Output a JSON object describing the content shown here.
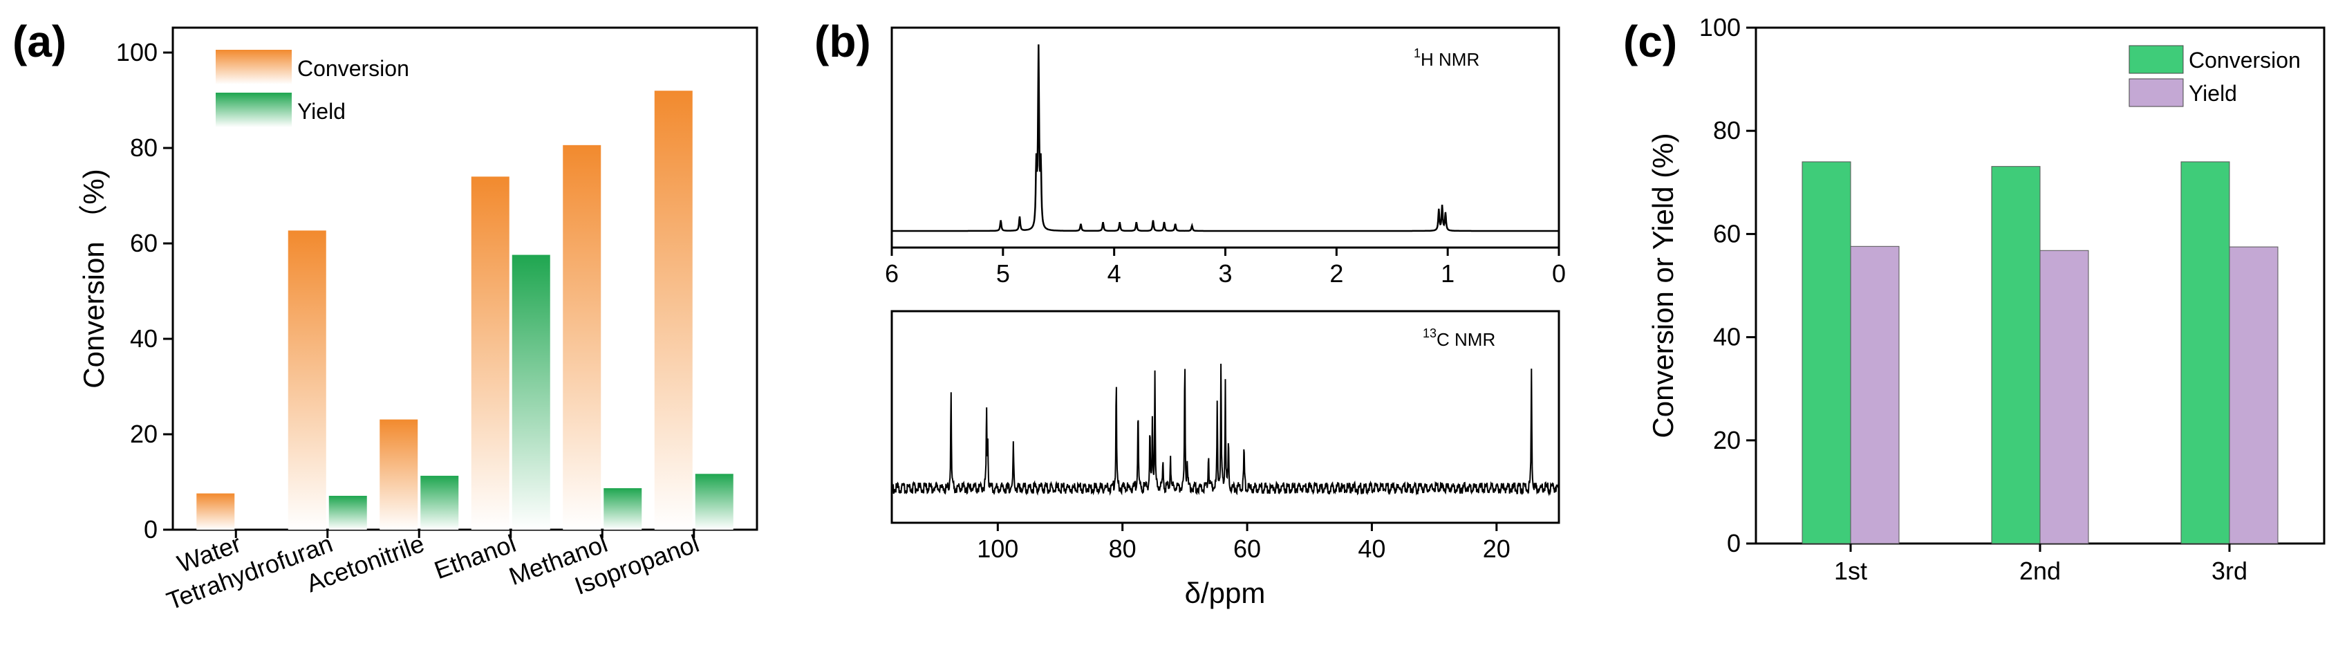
{
  "chart_data": [
    {
      "panel": "(a)",
      "type": "bar",
      "ylabel": "Conversion （%)",
      "ylim": [
        0,
        100
      ],
      "yticks": [
        "0",
        "20",
        "40",
        "60",
        "80",
        "100"
      ],
      "categories": [
        "Water",
        "Tetrahydrofuran",
        "Acetonitrile",
        "Ethanol",
        "Methanol",
        "Isopropanol"
      ],
      "series": [
        {
          "name": "Conversion",
          "values": [
            7.6,
            62.7,
            23.1,
            74.0,
            80.6,
            92.0
          ],
          "color": "#F28A2E"
        },
        {
          "name": "Yield",
          "values": [
            0,
            7.1,
            11.3,
            57.6,
            8.7,
            11.7
          ],
          "color": "#1FA650"
        }
      ],
      "legend": "top-left"
    },
    {
      "panel": "(b)",
      "type": "line",
      "subplots": [
        {
          "label": "1H NMR",
          "label_sup": "1",
          "label_main": "H NMR",
          "xlim": [
            6,
            0
          ],
          "xticks": [
            "6",
            "5",
            "4",
            "3",
            "2",
            "1",
            "0"
          ],
          "peaks_ppm": [
            5.02,
            4.85,
            4.7,
            4.68,
            4.66,
            4.3,
            4.1,
            3.95,
            3.8,
            3.65,
            3.55,
            3.45,
            3.3,
            1.08,
            1.05,
            1.02
          ],
          "peak_heights": [
            0.06,
            0.08,
            0.35,
            1.0,
            0.35,
            0.04,
            0.05,
            0.05,
            0.05,
            0.06,
            0.05,
            0.04,
            0.03,
            0.12,
            0.14,
            0.1
          ]
        },
        {
          "label": "13C NMR",
          "label_sup": "13",
          "label_main": "C NMR",
          "xlim": [
            117,
            10
          ],
          "xticks": [
            "100",
            "80",
            "60",
            "40",
            "20"
          ],
          "xtick_values": [
            100,
            80,
            60,
            40,
            20
          ],
          "xlabel": "δ/ppm",
          "peaks_ppm": [
            107.5,
            101.8,
            101.6,
            97.5,
            81.0,
            77.5,
            75.6,
            75.2,
            74.8,
            73.5,
            72.3,
            70.0,
            69.6,
            66.2,
            64.8,
            64.2,
            63.5,
            63.0,
            60.5,
            14.4
          ],
          "peak_heights": [
            0.65,
            0.5,
            0.3,
            0.28,
            0.72,
            0.52,
            0.35,
            0.45,
            0.72,
            0.18,
            0.22,
            0.85,
            0.18,
            0.25,
            0.52,
            0.78,
            0.7,
            0.3,
            0.28,
            0.78
          ]
        }
      ]
    },
    {
      "panel": "(c)",
      "type": "bar",
      "ylabel": "Conversion or Yield (%)",
      "ylim": [
        0,
        100
      ],
      "yticks": [
        "0",
        "20",
        "40",
        "60",
        "80",
        "100"
      ],
      "categories": [
        "1st",
        "2nd",
        "3rd"
      ],
      "series": [
        {
          "name": "Conversion",
          "values": [
            74.0,
            73.1,
            74.0
          ],
          "color": "#3FCC79"
        },
        {
          "name": "Yield",
          "values": [
            57.6,
            56.8,
            57.5
          ],
          "color": "#C4A8D4"
        }
      ],
      "legend": "top-right"
    }
  ]
}
